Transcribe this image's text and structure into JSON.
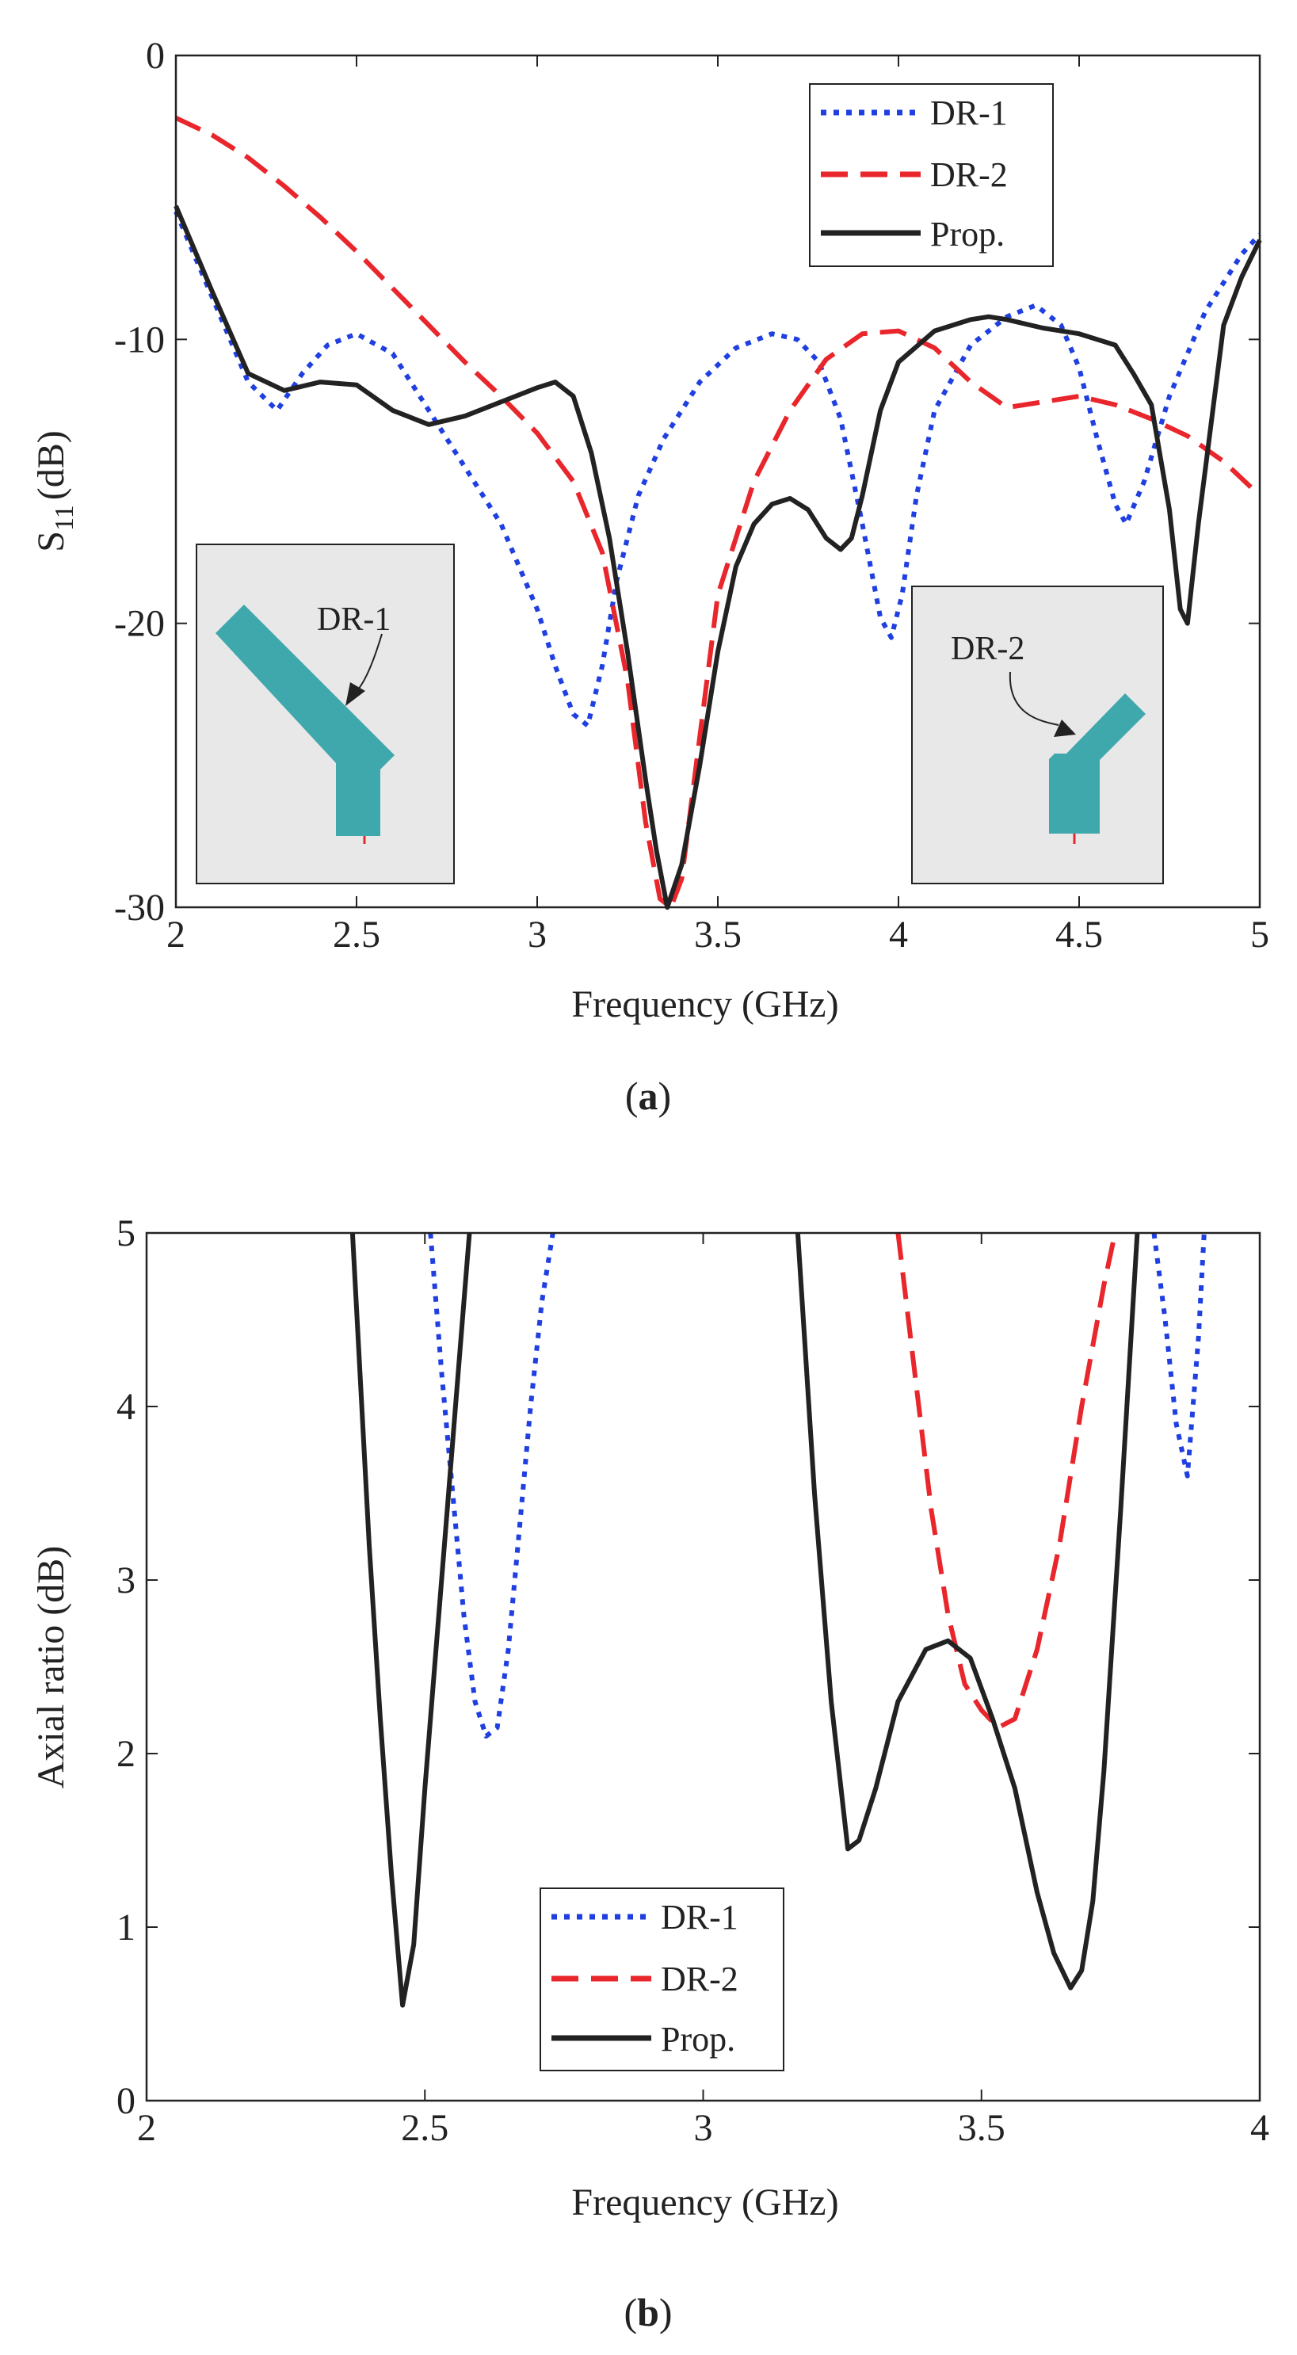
{
  "chart_data": [
    {
      "type": "line",
      "panel_label": "a",
      "xlabel": "Frequency (GHz)",
      "ylabel": "S11 (dB)",
      "ylabel_main": "S",
      "ylabel_sub": "11",
      "ylabel_unit": "(dB)",
      "xlim": [
        2,
        5
      ],
      "ylim": [
        -30,
        0
      ],
      "xticks": [
        2,
        2.5,
        3,
        3.5,
        4,
        4.5,
        5
      ],
      "yticks": [
        0,
        -10,
        -20,
        -30
      ],
      "grid": false,
      "legend_position": "top-right",
      "series": [
        {
          "name": "DR-1",
          "color": "#1f3fe0",
          "style": "dotted",
          "x": [
            2.0,
            2.1,
            2.2,
            2.28,
            2.35,
            2.42,
            2.5,
            2.6,
            2.7,
            2.8,
            2.9,
            3.0,
            3.05,
            3.1,
            3.14,
            3.18,
            3.22,
            3.28,
            3.35,
            3.45,
            3.55,
            3.65,
            3.72,
            3.78,
            3.84,
            3.9,
            3.95,
            3.98,
            4.01,
            4.05,
            4.1,
            4.2,
            4.3,
            4.38,
            4.45,
            4.5,
            4.55,
            4.6,
            4.63,
            4.68,
            4.75,
            4.85,
            4.95,
            5.0
          ],
          "y": [
            -5.5,
            -8.5,
            -11.5,
            -12.5,
            -11.2,
            -10.2,
            -9.8,
            -10.5,
            -12.5,
            -14.5,
            -16.5,
            -19.5,
            -21.5,
            -23.2,
            -23.6,
            -21.5,
            -18.5,
            -15.5,
            -13.5,
            -11.5,
            -10.3,
            -9.8,
            -10.0,
            -10.8,
            -12.8,
            -16.5,
            -19.8,
            -20.5,
            -19.0,
            -15.5,
            -12.5,
            -10.2,
            -9.2,
            -8.8,
            -9.5,
            -11.0,
            -13.5,
            -15.8,
            -16.5,
            -15.0,
            -12.0,
            -9.0,
            -7.0,
            -6.3
          ]
        },
        {
          "name": "DR-2",
          "color": "#e8262b",
          "style": "dashed",
          "x": [
            2.0,
            2.1,
            2.2,
            2.3,
            2.4,
            2.5,
            2.6,
            2.7,
            2.8,
            2.9,
            3.0,
            3.1,
            3.18,
            3.25,
            3.3,
            3.34,
            3.37,
            3.4,
            3.45,
            3.5,
            3.6,
            3.7,
            3.8,
            3.9,
            4.0,
            4.1,
            4.2,
            4.3,
            4.4,
            4.5,
            4.6,
            4.7,
            4.8,
            4.9,
            5.0
          ],
          "y": [
            -2.2,
            -2.8,
            -3.6,
            -4.6,
            -5.7,
            -6.9,
            -8.2,
            -9.5,
            -10.8,
            -12.0,
            -13.3,
            -15.0,
            -17.5,
            -22.0,
            -27.0,
            -29.7,
            -30.0,
            -29.0,
            -24.0,
            -19.0,
            -15.0,
            -12.5,
            -10.7,
            -9.8,
            -9.7,
            -10.3,
            -11.5,
            -12.4,
            -12.2,
            -12.0,
            -12.3,
            -12.8,
            -13.4,
            -14.3,
            -15.5
          ]
        },
        {
          "name": "Prop.",
          "color": "#222222",
          "style": "solid",
          "x": [
            2.0,
            2.1,
            2.2,
            2.3,
            2.4,
            2.5,
            2.6,
            2.7,
            2.8,
            2.9,
            3.0,
            3.05,
            3.1,
            3.15,
            3.2,
            3.25,
            3.3,
            3.33,
            3.36,
            3.4,
            3.45,
            3.5,
            3.55,
            3.6,
            3.65,
            3.7,
            3.75,
            3.8,
            3.84,
            3.87,
            3.9,
            3.95,
            4.0,
            4.1,
            4.2,
            4.25,
            4.3,
            4.4,
            4.5,
            4.6,
            4.65,
            4.7,
            4.75,
            4.78,
            4.8,
            4.83,
            4.9,
            4.95,
            5.0
          ],
          "y": [
            -5.3,
            -8.3,
            -11.2,
            -11.8,
            -11.5,
            -11.6,
            -12.5,
            -13.0,
            -12.7,
            -12.2,
            -11.7,
            -11.5,
            -12.0,
            -14.0,
            -17.0,
            -21.0,
            -25.5,
            -28.0,
            -30.0,
            -28.5,
            -25.0,
            -21.0,
            -18.0,
            -16.5,
            -15.8,
            -15.6,
            -16.0,
            -17.0,
            -17.4,
            -17.0,
            -15.5,
            -12.5,
            -10.8,
            -9.7,
            -9.3,
            -9.2,
            -9.3,
            -9.6,
            -9.8,
            -10.2,
            -11.2,
            -12.3,
            -16.0,
            -19.5,
            -20.0,
            -16.5,
            -9.5,
            -7.8,
            -6.5
          ]
        }
      ],
      "insets": [
        {
          "label": "DR-1"
        },
        {
          "label": "DR-2"
        }
      ],
      "inset_style": {
        "background": "#e8e8e8",
        "shape_color": "#3fa8ac",
        "feed_color": "#e8262b",
        "border": "#222222"
      }
    },
    {
      "type": "line",
      "panel_label": "b",
      "xlabel": "Frequency (GHz)",
      "ylabel": "Axial ratio (dB)",
      "xlim": [
        2,
        4
      ],
      "ylim": [
        0,
        5
      ],
      "xticks": [
        2,
        2.5,
        3,
        3.5,
        4
      ],
      "yticks": [
        0,
        1,
        2,
        3,
        4,
        5
      ],
      "grid": false,
      "legend_position": "bottom-center",
      "series": [
        {
          "name": "DR-1",
          "color": "#1f3fe0",
          "style": "dotted",
          "segments": [
            {
              "x": [
                2.51,
                2.53,
                2.55,
                2.57,
                2.59,
                2.61,
                2.63,
                2.65,
                2.67,
                2.69,
                2.71,
                2.73
              ],
              "y": [
                5.0,
                4.2,
                3.5,
                2.8,
                2.3,
                2.1,
                2.15,
                2.6,
                3.3,
                4.0,
                4.6,
                5.0
              ]
            },
            {
              "x": [
                3.81,
                3.83,
                3.85,
                3.87,
                3.89,
                3.9
              ],
              "y": [
                5.0,
                4.5,
                3.9,
                3.6,
                4.4,
                5.0
              ]
            }
          ]
        },
        {
          "name": "DR-2",
          "color": "#e8262b",
          "style": "dashed",
          "segments": [
            {
              "x": [
                3.35,
                3.38,
                3.41,
                3.44,
                3.47,
                3.5,
                3.53,
                3.56,
                3.6,
                3.64,
                3.68,
                3.72,
                3.74
              ],
              "y": [
                5.0,
                4.2,
                3.4,
                2.8,
                2.4,
                2.25,
                2.15,
                2.2,
                2.6,
                3.2,
                4.0,
                4.7,
                5.0
              ]
            }
          ]
        },
        {
          "name": "Prop.",
          "color": "#222222",
          "style": "solid",
          "segments": [
            {
              "x": [
                2.37,
                2.4,
                2.42,
                2.44,
                2.46,
                2.48,
                2.5,
                2.52,
                2.54,
                2.56,
                2.58
              ],
              "y": [
                5.0,
                3.2,
                2.2,
                1.3,
                0.55,
                0.9,
                1.8,
                2.6,
                3.4,
                4.2,
                5.0
              ]
            },
            {
              "x": [
                3.17,
                3.2,
                3.23,
                3.26,
                3.28,
                3.31,
                3.35,
                3.4,
                3.44,
                3.48,
                3.52,
                3.56,
                3.6,
                3.63,
                3.66,
                3.68,
                3.7,
                3.72,
                3.75,
                3.78
              ],
              "y": [
                5.0,
                3.5,
                2.3,
                1.45,
                1.5,
                1.8,
                2.3,
                2.6,
                2.65,
                2.55,
                2.2,
                1.8,
                1.2,
                0.85,
                0.65,
                0.75,
                1.15,
                1.9,
                3.4,
                5.0
              ]
            }
          ]
        }
      ]
    }
  ]
}
